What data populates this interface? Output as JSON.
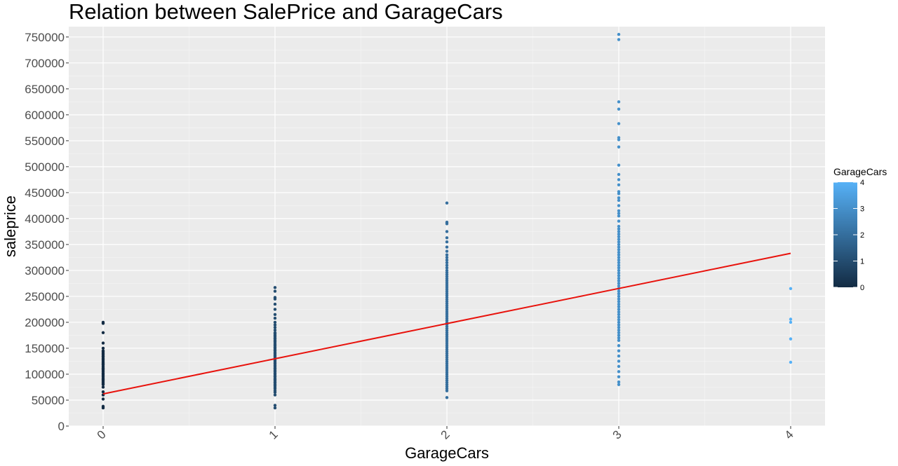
{
  "chart_data": {
    "type": "scatter",
    "title": "Relation between SalePrice and GarageCars",
    "xlabel": "GarageCars",
    "ylabel": "saleprice",
    "xlim": [
      -0.2,
      4.2
    ],
    "ylim": [
      0,
      770000
    ],
    "x_ticks": [
      0,
      1,
      2,
      3,
      4
    ],
    "x_tick_labels": [
      "0",
      "1",
      "2",
      "3",
      "4"
    ],
    "y_ticks": [
      0,
      50000,
      100000,
      150000,
      200000,
      250000,
      300000,
      350000,
      400000,
      450000,
      500000,
      550000,
      600000,
      650000,
      700000,
      750000
    ],
    "y_tick_labels": [
      "0",
      "50000",
      "100000",
      "150000",
      "200000",
      "250000",
      "300000",
      "350000",
      "400000",
      "450000",
      "500000",
      "550000",
      "600000",
      "650000",
      "700000",
      "750000"
    ],
    "grid": true,
    "background_color": "#ebebeb",
    "legend": {
      "title": "GarageCars",
      "placement": "right",
      "type": "colorbar",
      "range": [
        0,
        4
      ],
      "ticks": [
        "0",
        "1",
        "2",
        "3",
        "4"
      ],
      "color_low": "#132b43",
      "color_high": "#56b1f7"
    },
    "trend_line": {
      "color": "#e8120c",
      "x": [
        0,
        4
      ],
      "y": [
        62000,
        333000
      ]
    },
    "points": [
      {
        "x": 0,
        "y": [
          35000,
          38000,
          52000,
          60000,
          66000,
          75000,
          80000,
          82000,
          85000,
          88000,
          90000,
          92000,
          95000,
          98000,
          100000,
          102000,
          105000,
          108000,
          110000,
          112000,
          115000,
          118000,
          120000,
          122000,
          125000,
          128000,
          130000,
          133000,
          135000,
          138000,
          140000,
          143000,
          145000,
          150000,
          160000,
          180000,
          198000,
          200000
        ]
      },
      {
        "x": 1,
        "y": [
          35000,
          40000,
          60000,
          65000,
          68000,
          72000,
          75000,
          78000,
          80000,
          83000,
          85000,
          88000,
          90000,
          92000,
          95000,
          97000,
          100000,
          102000,
          105000,
          107000,
          110000,
          112000,
          115000,
          117000,
          120000,
          122000,
          125000,
          127000,
          130000,
          132000,
          135000,
          137000,
          140000,
          142000,
          145000,
          147000,
          150000,
          152000,
          155000,
          157000,
          160000,
          163000,
          165000,
          168000,
          170000,
          173000,
          175000,
          178000,
          180000,
          185000,
          190000,
          195000,
          200000,
          208000,
          215000,
          225000,
          235000,
          245000,
          248000,
          260000,
          267000
        ]
      },
      {
        "x": 2,
        "y": [
          55000,
          68000,
          72000,
          76000,
          80000,
          84000,
          88000,
          92000,
          96000,
          100000,
          104000,
          108000,
          112000,
          116000,
          120000,
          124000,
          128000,
          132000,
          136000,
          140000,
          144000,
          148000,
          152000,
          156000,
          160000,
          164000,
          168000,
          172000,
          176000,
          180000,
          184000,
          188000,
          192000,
          196000,
          200000,
          204000,
          208000,
          212000,
          216000,
          220000,
          224000,
          228000,
          232000,
          236000,
          240000,
          244000,
          248000,
          252000,
          256000,
          260000,
          264000,
          268000,
          272000,
          276000,
          280000,
          284000,
          288000,
          292000,
          296000,
          300000,
          305000,
          310000,
          315000,
          320000,
          325000,
          330000,
          337000,
          345000,
          355000,
          363000,
          375000,
          390000,
          393000,
          430000
        ]
      },
      {
        "x": 3,
        "y": [
          80000,
          85000,
          95000,
          105000,
          115000,
          125000,
          135000,
          145000,
          155000,
          165000,
          170000,
          175000,
          180000,
          185000,
          190000,
          195000,
          200000,
          205000,
          210000,
          215000,
          220000,
          225000,
          230000,
          235000,
          240000,
          245000,
          250000,
          255000,
          260000,
          265000,
          270000,
          275000,
          280000,
          285000,
          290000,
          295000,
          300000,
          305000,
          310000,
          315000,
          320000,
          325000,
          330000,
          335000,
          340000,
          345000,
          350000,
          355000,
          360000,
          365000,
          370000,
          375000,
          380000,
          385000,
          395000,
          405000,
          410000,
          415000,
          425000,
          435000,
          440000,
          448000,
          452000,
          465000,
          475000,
          485000,
          503000,
          538000,
          552000,
          556000,
          583000,
          611000,
          625000,
          745000,
          755000
        ]
      },
      {
        "x": 4,
        "y": [
          123000,
          168000,
          200000,
          206000,
          265000
        ]
      }
    ]
  }
}
